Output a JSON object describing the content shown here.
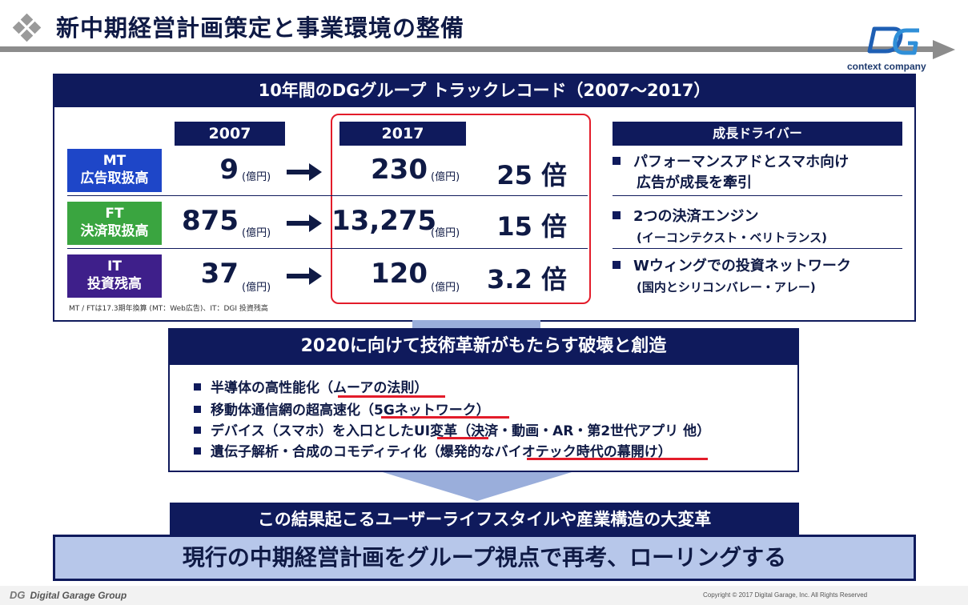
{
  "header": {
    "title": "新中期経営計画策定と事業環境の整備",
    "logo_text": "context company"
  },
  "track_record": {
    "heading": "10年間のDGグループ トラックレコード（2007～2017）",
    "year_start": "2007",
    "year_end": "2017",
    "unit": "(億円)",
    "rows": [
      {
        "line1": "MT",
        "line2": "広告取扱高",
        "start": "9",
        "end": "230",
        "multiple": "25 倍"
      },
      {
        "line1": "FT",
        "line2": "決済取扱高",
        "start": "875",
        "end": "13,275",
        "multiple": "15 倍"
      },
      {
        "line1": "IT",
        "line2": "投資残高",
        "start": "37",
        "end": "120",
        "multiple": "3.2 倍"
      }
    ],
    "drivers_heading": "成長ドライバー",
    "drivers": [
      {
        "main": "パフォーマンスアドとスマホ向け",
        "cont": "広告が成長を牽引",
        "sub": ""
      },
      {
        "main": "2つの決済エンジン",
        "cont": "",
        "sub": "(イーコンテクスト・ベリトランス)"
      },
      {
        "main": "Wウィングでの投資ネットワーク",
        "cont": "",
        "sub": "(国内とシリコンバレー・アレー)"
      }
    ],
    "footnote": "MT / FTは17.3期年換算 (MT：Web広告)、IT：DGI 投資残高"
  },
  "tech": {
    "heading": "2020に向けて技術革新がもたらす破壊と創造",
    "items": [
      "半導体の高性能化（ムーアの法則）",
      "移動体通信網の超高速化（5Gネットワーク）",
      "デバイス（スマホ）を入口としたUI変革（決済・動画・AR・第2世代アプリ 他）",
      "遺伝子解析・合成のコモディティ化（爆発的なバイオテック時代の幕開け）"
    ]
  },
  "result": {
    "bar": "この結果起こるユーザーライフスタイルや産業構造の大変革",
    "final": "現行の中期経営計画をグループ視点で再考、ローリングする"
  },
  "footer": {
    "brand": "Digital Garage Group",
    "copyright": "Copyright © 2017 Digital Garage, Inc. All Rights Reserved"
  },
  "colors": {
    "navy": "#0f1a5c",
    "mt": "#1e46c8",
    "ft": "#3aa540",
    "it": "#3e1f8a",
    "highlight": "#e31c2a",
    "light_blue": "#b7c7ea"
  }
}
